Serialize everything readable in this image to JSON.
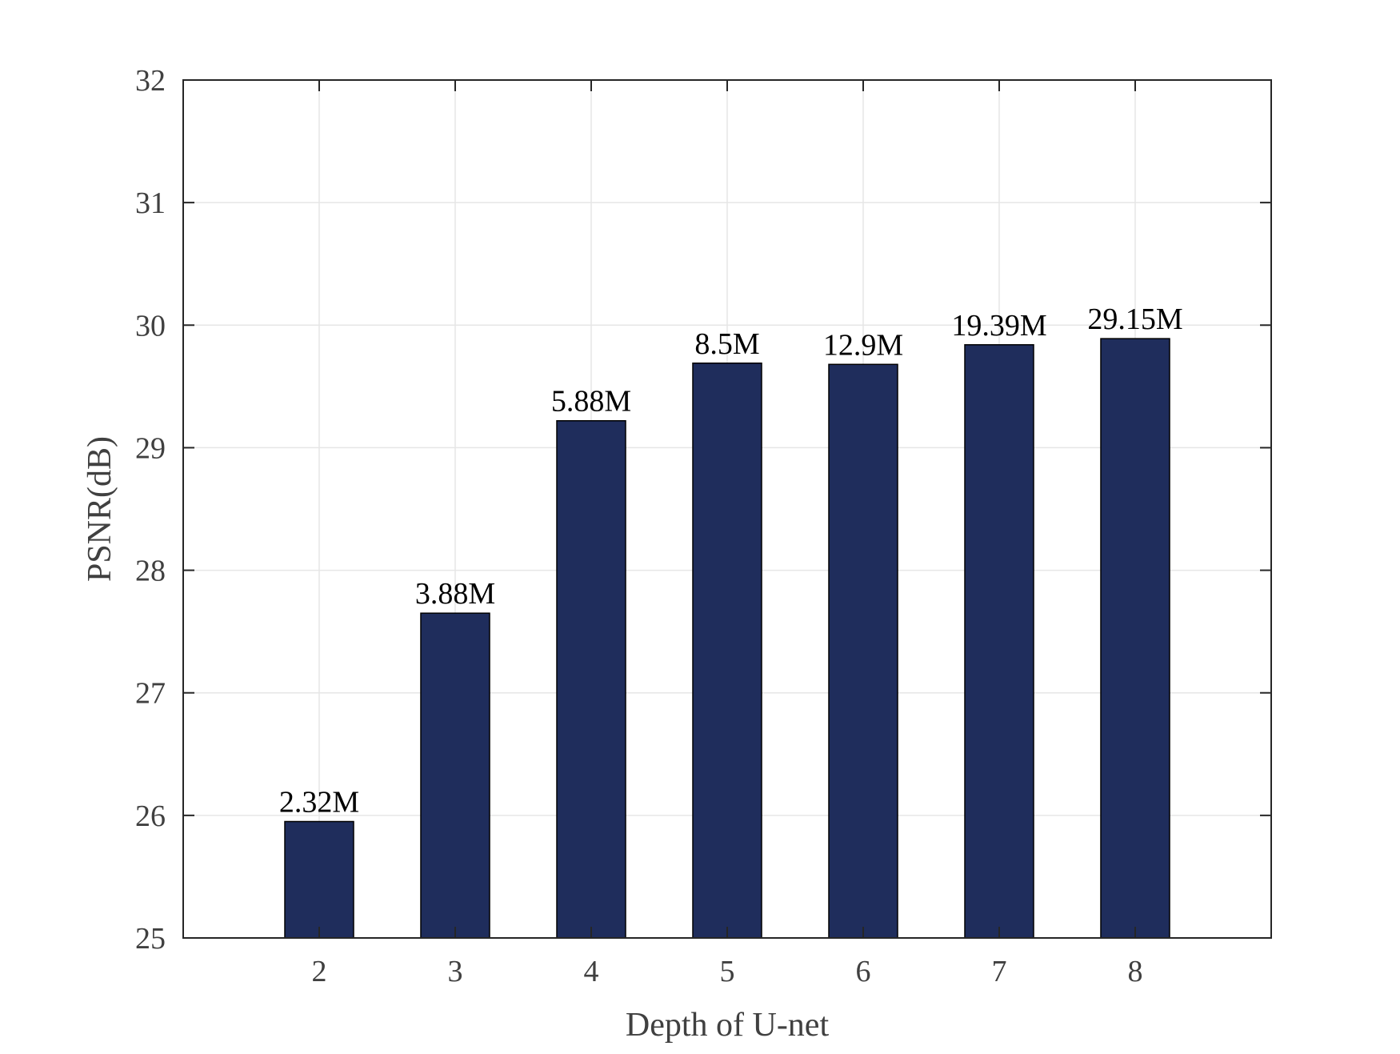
{
  "chart_data": {
    "type": "bar",
    "title": "",
    "xlabel": "Depth of U-net",
    "ylabel": "PSNR(dB)",
    "categories": [
      "2",
      "3",
      "4",
      "5",
      "6",
      "7",
      "8"
    ],
    "series": [
      {
        "values": [
          25.95,
          27.65,
          29.22,
          29.69,
          29.68,
          29.84,
          29.89
        ],
        "labels": [
          "2.32M",
          "3.88M",
          "5.88M",
          "8.5M",
          "12.9M",
          "19.39M",
          "29.15M"
        ]
      }
    ],
    "xlim": [
      1,
      9
    ],
    "ylim": [
      25,
      32
    ],
    "yticks": [
      25,
      26,
      27,
      28,
      29,
      30,
      31,
      32
    ],
    "grid": true,
    "legend": "none",
    "colors": {
      "bar_fill": "#1f2d5c",
      "bar_edge": "#000000",
      "grid": "#e6e6e6",
      "axis": "#262626",
      "tick_text": "#404040"
    }
  }
}
